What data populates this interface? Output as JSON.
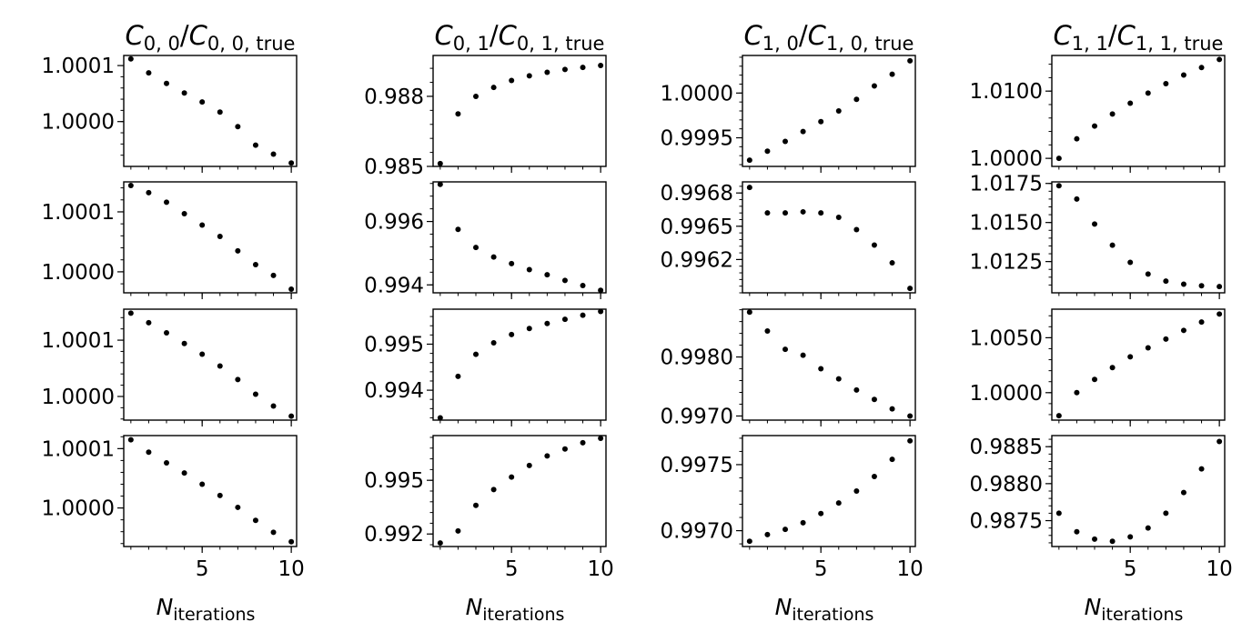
{
  "figure": {
    "xlabel_base": "N",
    "xlabel_sub": "iterations"
  },
  "chart_data": [
    {
      "type": "scatter",
      "column": 0,
      "row": 0,
      "title": {
        "base": "C",
        "sub": "0, 0",
        "den_sub": "0, 0, true"
      },
      "x": [
        1,
        2,
        3,
        4,
        5,
        6,
        7,
        8,
        9,
        10
      ],
      "y": [
        1.000112,
        1.000087,
        1.000068,
        1.000051,
        1.000035,
        1.000017,
        0.999991,
        0.999958,
        0.999942,
        0.999926
      ],
      "ylim": [
        0.99992,
        1.000118
      ],
      "yticks": [
        1.0001,
        1.0
      ],
      "ytick_labels": [
        "1.0001",
        "1.0000"
      ],
      "xlim": [
        0.6,
        10.3
      ],
      "xticks": [
        5,
        10
      ],
      "xtick_labels": [
        "",
        ""
      ]
    },
    {
      "type": "scatter",
      "column": 0,
      "row": 1,
      "x": [
        1,
        2,
        3,
        4,
        5,
        6,
        7,
        8,
        9,
        10
      ],
      "y": [
        1.000144,
        1.000132,
        1.000116,
        1.000097,
        1.000078,
        1.000059,
        1.000035,
        1.000012,
        0.999994,
        0.999971
      ],
      "ylim": [
        0.999965,
        1.00015
      ],
      "yticks": [
        1.0001,
        1.0
      ],
      "ytick_labels": [
        "1.0001",
        "1.0000"
      ],
      "xlim": [
        0.6,
        10.3
      ],
      "xticks": [
        5,
        10
      ],
      "xtick_labels": [
        "",
        ""
      ]
    },
    {
      "type": "scatter",
      "column": 0,
      "row": 2,
      "x": [
        1,
        2,
        3,
        4,
        5,
        6,
        7,
        8,
        9,
        10
      ],
      "y": [
        1.000148,
        1.000131,
        1.000113,
        1.000094,
        1.000075,
        1.000054,
        1.00003,
        1.000004,
        0.999983,
        0.999965
      ],
      "ylim": [
        0.999958,
        1.000155
      ],
      "yticks": [
        1.0001,
        1.0
      ],
      "ytick_labels": [
        "1.0001",
        "1.0000"
      ],
      "xlim": [
        0.6,
        10.3
      ],
      "xticks": [
        5,
        10
      ],
      "xtick_labels": [
        "",
        ""
      ]
    },
    {
      "type": "scatter",
      "column": 0,
      "row": 3,
      "x": [
        1,
        2,
        3,
        4,
        5,
        6,
        7,
        8,
        9,
        10
      ],
      "y": [
        1.000115,
        1.000094,
        1.000076,
        1.000059,
        1.00004,
        1.000021,
        1.000001,
        0.999979,
        0.999959,
        0.999943
      ],
      "ylim": [
        0.999935,
        1.000122
      ],
      "yticks": [
        1.0001,
        1.0
      ],
      "ytick_labels": [
        "1.0001",
        "1.0000"
      ],
      "xlim": [
        0.6,
        10.3
      ],
      "xticks": [
        5,
        10
      ],
      "xtick_labels": [
        "5",
        "10"
      ]
    },
    {
      "type": "scatter",
      "column": 1,
      "row": 0,
      "title": {
        "base": "C",
        "sub": "0, 1",
        "den_sub": "0, 1, true"
      },
      "x": [
        1,
        2,
        3,
        4,
        5,
        6,
        7,
        8,
        9,
        10
      ],
      "y": [
        0.98512,
        0.98725,
        0.988,
        0.98838,
        0.98868,
        0.98888,
        0.98903,
        0.98915,
        0.98924,
        0.98932
      ],
      "ylim": [
        0.985,
        0.98975
      ],
      "yticks": [
        0.988,
        0.985
      ],
      "ytick_labels": [
        "0.988",
        "0.985"
      ],
      "xlim": [
        0.6,
        10.3
      ],
      "xticks": [
        5,
        10
      ],
      "xtick_labels": [
        "",
        ""
      ]
    },
    {
      "type": "scatter",
      "column": 1,
      "row": 1,
      "x": [
        1,
        2,
        3,
        4,
        5,
        6,
        7,
        8,
        9,
        10
      ],
      "y": [
        0.99717,
        0.99575,
        0.99518,
        0.99488,
        0.99467,
        0.99448,
        0.99432,
        0.99414,
        0.99398,
        0.99383
      ],
      "ylim": [
        0.99375,
        0.99725
      ],
      "yticks": [
        0.996,
        0.994
      ],
      "ytick_labels": [
        "0.996",
        "0.994"
      ],
      "xlim": [
        0.6,
        10.3
      ],
      "xticks": [
        5,
        10
      ],
      "xtick_labels": [
        "",
        ""
      ]
    },
    {
      "type": "scatter",
      "column": 1,
      "row": 2,
      "x": [
        1,
        2,
        3,
        4,
        5,
        6,
        7,
        8,
        9,
        10
      ],
      "y": [
        0.9934,
        0.9943,
        0.99478,
        0.99503,
        0.99521,
        0.99534,
        0.99545,
        0.99554,
        0.99563,
        0.99571
      ],
      "ylim": [
        0.99335,
        0.99576
      ],
      "yticks": [
        0.995,
        0.994
      ],
      "ytick_labels": [
        "0.995",
        "0.994"
      ],
      "xlim": [
        0.6,
        10.3
      ],
      "xticks": [
        5,
        10
      ],
      "xtick_labels": [
        "",
        ""
      ]
    },
    {
      "type": "scatter",
      "column": 1,
      "row": 3,
      "x": [
        1,
        2,
        3,
        4,
        5,
        6,
        7,
        8,
        9,
        10
      ],
      "y": [
        0.9915,
        0.99217,
        0.9936,
        0.99448,
        0.99518,
        0.99583,
        0.99636,
        0.99675,
        0.9971,
        0.99735
      ],
      "ylim": [
        0.9913,
        0.9975
      ],
      "yticks": [
        0.995,
        0.992
      ],
      "ytick_labels": [
        "0.995",
        "0.992"
      ],
      "xlim": [
        0.6,
        10.3
      ],
      "xticks": [
        5,
        10
      ],
      "xtick_labels": [
        "5",
        "10"
      ]
    },
    {
      "type": "scatter",
      "column": 2,
      "row": 0,
      "title": {
        "base": "C",
        "sub": "1, 0",
        "den_sub": "1, 0, true"
      },
      "x": [
        1,
        2,
        3,
        4,
        5,
        6,
        7,
        8,
        9,
        10
      ],
      "y": [
        0.99925,
        0.99935,
        0.99946,
        0.99957,
        0.99968,
        0.9998,
        0.99993,
        1.00008,
        1.00021,
        1.00036
      ],
      "ylim": [
        0.99918,
        1.00042
      ],
      "yticks": [
        1.0,
        0.9995
      ],
      "ytick_labels": [
        "1.0000",
        "0.9995"
      ],
      "xlim": [
        0.6,
        10.3
      ],
      "xticks": [
        5,
        10
      ],
      "xtick_labels": [
        "",
        ""
      ]
    },
    {
      "type": "scatter",
      "column": 2,
      "row": 1,
      "x": [
        1,
        2,
        3,
        4,
        5,
        6,
        7,
        8,
        9,
        10
      ],
      "y": [
        0.99685,
        0.99662,
        0.99662,
        0.99663,
        0.99662,
        0.99658,
        0.99647,
        0.99633,
        0.99617,
        0.99594
      ],
      "ylim": [
        0.9959,
        0.9969
      ],
      "yticks": [
        0.9968,
        0.9965,
        0.9962
      ],
      "ytick_labels": [
        "0.9968",
        "0.9965",
        "0.9962"
      ],
      "xlim": [
        0.6,
        10.3
      ],
      "xticks": [
        5,
        10
      ],
      "xtick_labels": [
        "",
        ""
      ]
    },
    {
      "type": "scatter",
      "column": 2,
      "row": 2,
      "x": [
        1,
        2,
        3,
        4,
        5,
        6,
        7,
        8,
        9,
        10
      ],
      "y": [
        0.99876,
        0.99844,
        0.99813,
        0.99803,
        0.9978,
        0.99763,
        0.99744,
        0.99728,
        0.99712,
        0.997
      ],
      "ylim": [
        0.99693,
        0.99881
      ],
      "yticks": [
        0.998,
        0.997
      ],
      "ytick_labels": [
        "0.9980",
        "0.9970"
      ],
      "xlim": [
        0.6,
        10.3
      ],
      "xticks": [
        5,
        10
      ],
      "xtick_labels": [
        "",
        ""
      ]
    },
    {
      "type": "scatter",
      "column": 2,
      "row": 3,
      "x": [
        1,
        2,
        3,
        4,
        5,
        6,
        7,
        8,
        9,
        10
      ],
      "y": [
        0.99692,
        0.99697,
        0.99701,
        0.99706,
        0.99713,
        0.99721,
        0.9973,
        0.99741,
        0.99754,
        0.99768
      ],
      "ylim": [
        0.99688,
        0.99772
      ],
      "yticks": [
        0.9975,
        0.997
      ],
      "ytick_labels": [
        "0.9975",
        "0.9970"
      ],
      "xlim": [
        0.6,
        10.3
      ],
      "xticks": [
        5,
        10
      ],
      "xtick_labels": [
        "5",
        "10"
      ]
    },
    {
      "type": "scatter",
      "column": 3,
      "row": 0,
      "title": {
        "base": "C",
        "sub": "1, 1",
        "den_sub": "1, 1, true"
      },
      "x": [
        1,
        2,
        3,
        4,
        5,
        6,
        7,
        8,
        9,
        10
      ],
      "y": [
        1.0,
        1.0029,
        1.0048,
        1.0066,
        1.0082,
        1.0097,
        1.0111,
        1.0124,
        1.0135,
        1.0147
      ],
      "ylim": [
        0.9988,
        1.0153
      ],
      "yticks": [
        1.01,
        1.0
      ],
      "ytick_labels": [
        "1.0100",
        "1.0000"
      ],
      "xlim": [
        0.6,
        10.3
      ],
      "xticks": [
        5,
        10
      ],
      "xtick_labels": [
        "",
        ""
      ]
    },
    {
      "type": "scatter",
      "column": 3,
      "row": 1,
      "x": [
        1,
        2,
        3,
        4,
        5,
        6,
        7,
        8,
        9,
        10
      ],
      "y": [
        1.01735,
        1.0165,
        1.0149,
        1.01355,
        1.01245,
        1.0117,
        1.01125,
        1.01105,
        1.01095,
        1.0109
      ],
      "ylim": [
        1.0105,
        1.0176
      ],
      "yticks": [
        1.0175,
        1.015,
        1.0125
      ],
      "ytick_labels": [
        "1.0175",
        "1.0150",
        "1.0125"
      ],
      "xlim": [
        0.6,
        10.3
      ],
      "xticks": [
        5,
        10
      ],
      "xtick_labels": [
        "",
        ""
      ]
    },
    {
      "type": "scatter",
      "column": 3,
      "row": 2,
      "x": [
        1,
        2,
        3,
        4,
        5,
        6,
        7,
        8,
        9,
        10
      ],
      "y": [
        0.9979,
        1.0,
        1.0012,
        1.00228,
        1.00326,
        1.00408,
        1.00488,
        1.00567,
        1.00643,
        1.00716
      ],
      "ylim": [
        0.9975,
        1.0076
      ],
      "yticks": [
        1.005,
        1.0
      ],
      "ytick_labels": [
        "1.0050",
        "1.0000"
      ],
      "xlim": [
        0.6,
        10.3
      ],
      "xticks": [
        5,
        10
      ],
      "xtick_labels": [
        "",
        ""
      ]
    },
    {
      "type": "scatter",
      "column": 3,
      "row": 3,
      "x": [
        1,
        2,
        3,
        4,
        5,
        6,
        7,
        8,
        9,
        10
      ],
      "y": [
        0.9876,
        0.98735,
        0.98725,
        0.98722,
        0.98728,
        0.9874,
        0.9876,
        0.98788,
        0.9882,
        0.98857
      ],
      "ylim": [
        0.98715,
        0.98865
      ],
      "yticks": [
        0.9885,
        0.988,
        0.9875
      ],
      "ytick_labels": [
        "0.9885",
        "0.9880",
        "0.9875"
      ],
      "xlim": [
        0.6,
        10.3
      ],
      "xticks": [
        5,
        10
      ],
      "xtick_labels": [
        "5",
        "10"
      ]
    }
  ]
}
